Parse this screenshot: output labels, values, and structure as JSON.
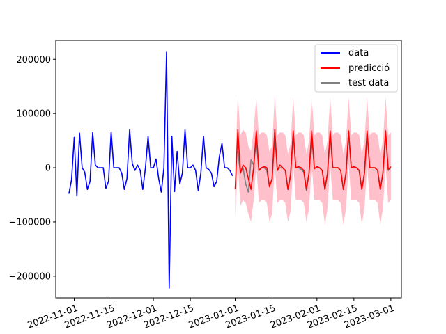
{
  "chart_data": {
    "type": "line",
    "title": "",
    "xlabel": "",
    "ylabel": "",
    "x_range": [
      "2022-10-25",
      "2023-03-05"
    ],
    "ylim": [
      -240000,
      235000
    ],
    "y_ticks": [
      -200000,
      -100000,
      0,
      100000,
      200000
    ],
    "x_ticks": [
      "2022-11-01",
      "2022-11-15",
      "2022-12-01",
      "2022-12-15",
      "2023-01-01",
      "2023-01-15",
      "2023-02-01",
      "2023-02-15",
      "2023-03-01"
    ],
    "grid": false,
    "legend_position": "top-right",
    "series": [
      {
        "name": "data",
        "color": "#0000ff",
        "start_date": "2022-10-30",
        "values": [
          -48000,
          -22000,
          56000,
          -52000,
          64000,
          0,
          -8000,
          -40000,
          -25000,
          65000,
          5000,
          0,
          0,
          0,
          -38000,
          -25000,
          66000,
          0,
          0,
          0,
          -10000,
          -40000,
          -20000,
          70000,
          8000,
          -5000,
          5000,
          -5000,
          -40000,
          0,
          58000,
          0,
          0,
          16000,
          -20000,
          -45000,
          0,
          213000,
          -222000,
          58000,
          -44000,
          30000,
          -30000,
          -10000,
          70000,
          0,
          0,
          5000,
          -5000,
          -42000,
          -10000,
          58000,
          0,
          -3000,
          -10000,
          -35000,
          -25000,
          20000,
          45000,
          0,
          0,
          -5000,
          -15000
        ]
      },
      {
        "name": "predicció",
        "color": "#ff0000",
        "start_date": "2023-01-01",
        "values": [
          -40000,
          70000,
          -10000,
          5000,
          0,
          -20000,
          -40000,
          0,
          68000,
          -5000,
          0,
          2000,
          0,
          -35000,
          -20000,
          70000,
          -5000,
          5000,
          0,
          -5000,
          -40000,
          -15000,
          68000,
          0,
          2000,
          0,
          -5000,
          -40000,
          -10000,
          68000,
          -2000,
          2000,
          0,
          -5000,
          -40000,
          -10000,
          68000,
          0,
          0,
          0,
          -5000,
          -40000,
          -10000,
          68000,
          0,
          2000,
          0,
          -5000,
          -40000,
          -10000,
          68000,
          0,
          0,
          0,
          -5000,
          -40000,
          -10000,
          68000,
          -3000,
          2000
        ]
      },
      {
        "name": "test data",
        "color": "#808080",
        "start_date": "2023-01-01",
        "values": [
          null,
          30000,
          -10000,
          0,
          -30000,
          -45000,
          15000,
          5000,
          50000,
          -5000,
          0,
          0,
          -5000,
          -35000,
          -20000,
          60000,
          -5000,
          0,
          0,
          -5000,
          -40000,
          -10000,
          60000,
          0,
          0,
          -3000,
          -8000,
          -42000,
          -10000,
          60000,
          0,
          0,
          0,
          -5000,
          -40000,
          -10000,
          60000,
          0,
          0,
          0,
          -5000,
          -40000,
          -10000,
          60000,
          0,
          0,
          0,
          -5000,
          -40000,
          -10000,
          60000,
          0,
          0,
          0,
          -5000,
          -40000,
          -10000,
          60000,
          -5000,
          0
        ]
      }
    ],
    "confidence_band": {
      "color": "#ffc0cb",
      "start_date": "2023-01-01",
      "upper": [
        0,
        135000,
        60000,
        70000,
        65000,
        40000,
        30000,
        70000,
        130000,
        60000,
        65000,
        65000,
        60000,
        30000,
        40000,
        135000,
        60000,
        65000,
        65000,
        60000,
        25000,
        45000,
        130000,
        60000,
        65000,
        65000,
        60000,
        25000,
        50000,
        130000,
        60000,
        65000,
        65000,
        60000,
        25000,
        50000,
        130000,
        60000,
        65000,
        65000,
        60000,
        25000,
        50000,
        130000,
        60000,
        65000,
        65000,
        60000,
        25000,
        50000,
        130000,
        60000,
        65000,
        65000,
        60000,
        25000,
        50000,
        130000,
        60000,
        65000
      ],
      "lower": [
        -90000,
        5000,
        -70000,
        -60000,
        -65000,
        -85000,
        -100000,
        -60000,
        5000,
        -65000,
        -60000,
        -60000,
        -65000,
        -100000,
        -85000,
        5000,
        -65000,
        -60000,
        -60000,
        -65000,
        -100000,
        -80000,
        5000,
        -60000,
        -60000,
        -60000,
        -65000,
        -100000,
        -75000,
        5000,
        -60000,
        -60000,
        -60000,
        -65000,
        -105000,
        -75000,
        5000,
        -60000,
        -60000,
        -60000,
        -65000,
        -105000,
        -75000,
        5000,
        -60000,
        -60000,
        -60000,
        -65000,
        -105000,
        -75000,
        5000,
        -60000,
        -60000,
        -60000,
        -65000,
        -105000,
        -75000,
        5000,
        -65000,
        -60000
      ]
    }
  }
}
